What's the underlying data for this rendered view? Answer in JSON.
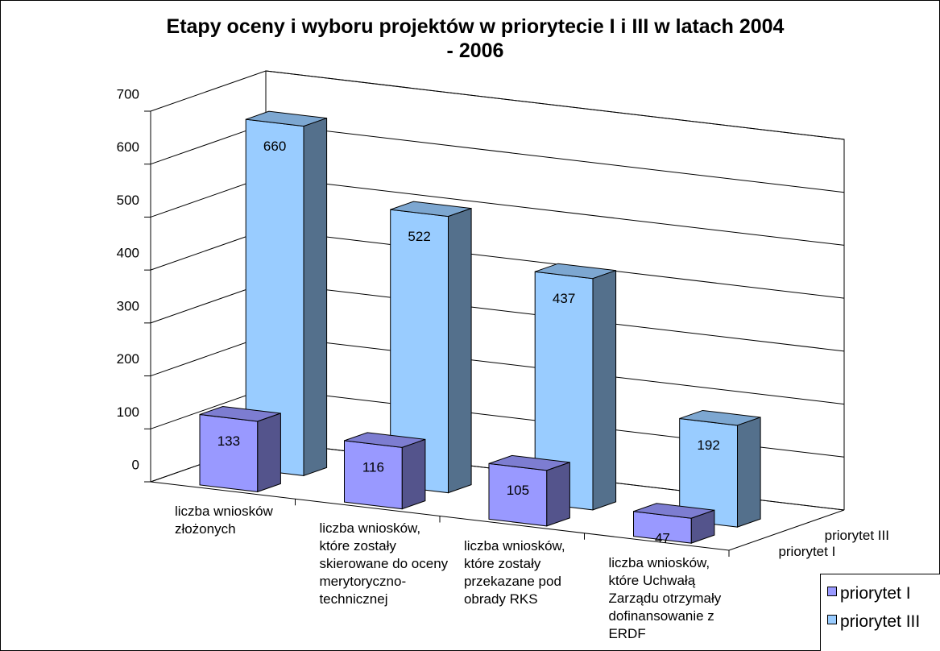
{
  "chart_data": {
    "type": "bar3d",
    "title": "Etapy oceny i wyboru projektów w priorytecie I i III w latach 2004 - 2006",
    "categories": [
      "liczba wniosków złożonych",
      "liczba wniosków, które zostały skierowane do oceny merytoryczno-technicznej",
      "liczba wniosków, które zostały przekazane pod obrady RKS",
      "liczba wniosków, które Uchwałą Zarządu otrzymały dofinansowanie z ERDF"
    ],
    "series": [
      {
        "name": "priorytet I",
        "color": "#9999ff",
        "values": [
          133,
          116,
          105,
          47
        ]
      },
      {
        "name": "priorytet III",
        "color": "#99ccff",
        "values": [
          660,
          522,
          437,
          192
        ]
      }
    ],
    "ylim": [
      0,
      700
    ],
    "yticks": [
      0,
      100,
      200,
      300,
      400,
      500,
      600,
      700
    ],
    "grid": true
  }
}
